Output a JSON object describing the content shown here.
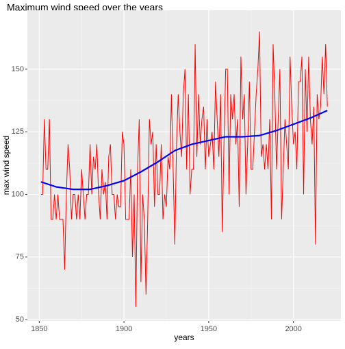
{
  "chart_data": {
    "type": "line",
    "title": "Maximum wind speed over the years",
    "x_label": "years",
    "y_label": "max wind speed",
    "xlim": [
      1843,
      2028
    ],
    "ylim": [
      49.5,
      173.5
    ],
    "xticks": [
      1850,
      1900,
      1950,
      2000
    ],
    "yticks": [
      50,
      75,
      100,
      125,
      150
    ],
    "grid": true,
    "series": [
      {
        "color": "#ff0000",
        "x": [
          1851,
          1852,
          1853,
          1854,
          1855,
          1856,
          1857,
          1858,
          1859,
          1860,
          1861,
          1862,
          1863,
          1864,
          1865,
          1866,
          1867,
          1868,
          1869,
          1870,
          1871,
          1872,
          1873,
          1874,
          1875,
          1876,
          1877,
          1878,
          1879,
          1880,
          1881,
          1882,
          1883,
          1884,
          1885,
          1886,
          1887,
          1888,
          1889,
          1890,
          1891,
          1892,
          1893,
          1894,
          1895,
          1896,
          1897,
          1898,
          1899,
          1900,
          1901,
          1902,
          1903,
          1904,
          1905,
          1906,
          1907,
          1908,
          1909,
          1910,
          1911,
          1912,
          1913,
          1914,
          1915,
          1916,
          1917,
          1918,
          1919,
          1920,
          1921,
          1922,
          1923,
          1924,
          1925,
          1926,
          1927,
          1928,
          1929,
          1930,
          1931,
          1932,
          1933,
          1934,
          1935,
          1936,
          1937,
          1938,
          1939,
          1940,
          1941,
          1942,
          1943,
          1944,
          1945,
          1946,
          1947,
          1948,
          1949,
          1950,
          1951,
          1952,
          1953,
          1954,
          1955,
          1956,
          1957,
          1958,
          1959,
          1960,
          1961,
          1962,
          1963,
          1964,
          1965,
          1966,
          1967,
          1968,
          1969,
          1970,
          1971,
          1972,
          1973,
          1974,
          1975,
          1976,
          1977,
          1978,
          1979,
          1980,
          1981,
          1982,
          1983,
          1984,
          1985,
          1986,
          1987,
          1988,
          1989,
          1990,
          1991,
          1992,
          1993,
          1994,
          1995,
          1996,
          1997,
          1998,
          1999,
          2000,
          2001,
          2002,
          2003,
          2004,
          2005,
          2006,
          2007,
          2008,
          2009,
          2010,
          2011,
          2012,
          2013,
          2014,
          2015,
          2016,
          2017,
          2018,
          2019,
          2020
        ],
        "values": [
          100,
          100,
          130,
          110,
          110,
          130,
          90,
          90,
          100,
          90,
          100,
          90,
          90,
          90,
          70,
          100,
          120,
          110,
          90,
          100,
          100,
          90,
          100,
          90,
          110,
          100,
          90,
          100,
          100,
          120,
          100,
          115,
          110,
          120,
          100,
          90,
          110,
          100,
          105,
          90,
          115,
          120,
          100,
          100,
          90,
          100,
          95,
          95,
          125,
          120,
          90,
          90,
          90,
          110,
          75,
          100,
          55,
          110,
          130,
          65,
          100,
          90,
          60,
          90,
          130,
          120,
          125,
          95,
          120,
          100,
          100,
          120,
          90,
          100,
          95,
          115,
          110,
          140,
          110,
          80,
          120,
          140,
          125,
          115,
          140,
          150,
          110,
          140,
          100,
          110,
          110,
          160,
          115,
          140,
          120,
          130,
          135,
          110,
          130,
          115,
          120,
          125,
          110,
          145,
          130,
          115,
          140,
          85,
          120,
          150,
          150,
          100,
          140,
          130,
          140,
          120,
          130,
          95,
          155,
          130,
          140,
          100,
          120,
          145,
          110,
          110,
          125,
          140,
          150,
          165,
          115,
          120,
          110,
          120,
          110,
          130,
          90,
          160,
          140,
          110,
          130,
          150,
          90,
          110,
          130,
          120,
          110,
          155,
          135,
          120,
          125,
          110,
          145,
          145,
          155,
          100,
          150,
          125,
          155,
          130,
          120,
          135,
          80,
          140,
          130,
          135,
          155,
          140,
          160,
          135
        ]
      },
      {
        "color": "#0000ff",
        "x": [
          1851,
          1860,
          1870,
          1880,
          1890,
          1900,
          1910,
          1920,
          1930,
          1940,
          1950,
          1960,
          1970,
          1980,
          1990,
          2000,
          2010,
          2020
        ],
        "values": [
          105,
          103,
          102,
          102,
          103.5,
          105.5,
          109,
          113,
          117.5,
          120,
          121.5,
          123,
          123,
          123.5,
          125.5,
          128,
          130.5,
          133.5
        ]
      }
    ]
  }
}
